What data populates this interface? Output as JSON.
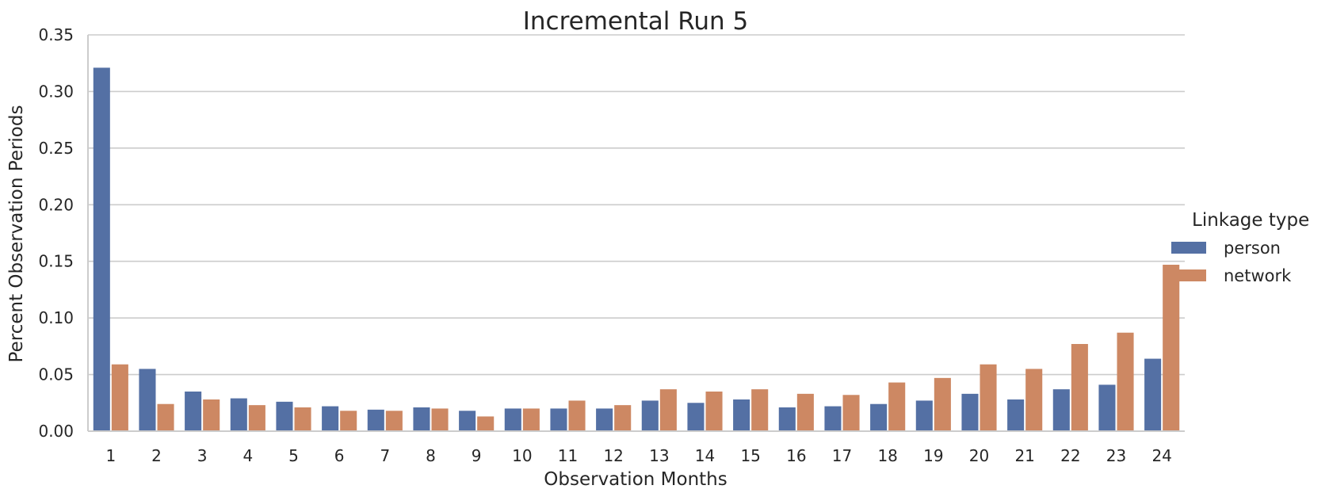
{
  "chart_data": {
    "type": "bar",
    "title": "Incremental Run 5",
    "xlabel": "Observation Months",
    "ylabel": "Percent Observation Periods",
    "ylim": [
      0,
      0.35
    ],
    "yticks": [
      "0.00",
      "0.05",
      "0.10",
      "0.15",
      "0.20",
      "0.25",
      "0.30",
      "0.35"
    ],
    "categories": [
      "1",
      "2",
      "3",
      "4",
      "5",
      "6",
      "7",
      "8",
      "9",
      "10",
      "11",
      "12",
      "13",
      "14",
      "15",
      "16",
      "17",
      "18",
      "19",
      "20",
      "21",
      "22",
      "23",
      "24"
    ],
    "grid": true,
    "legend": {
      "title": "Linkage type",
      "placement": "right"
    },
    "series": [
      {
        "name": "person",
        "color": "#5470a4",
        "values": [
          0.321,
          0.055,
          0.035,
          0.029,
          0.026,
          0.022,
          0.019,
          0.021,
          0.018,
          0.02,
          0.02,
          0.02,
          0.027,
          0.025,
          0.028,
          0.021,
          0.022,
          0.024,
          0.027,
          0.033,
          0.028,
          0.037,
          0.041,
          0.064
        ]
      },
      {
        "name": "network",
        "color": "#cd8863",
        "values": [
          0.059,
          0.024,
          0.028,
          0.023,
          0.021,
          0.018,
          0.018,
          0.02,
          0.013,
          0.02,
          0.027,
          0.023,
          0.037,
          0.035,
          0.037,
          0.033,
          0.032,
          0.043,
          0.047,
          0.059,
          0.055,
          0.077,
          0.087,
          0.147
        ]
      }
    ]
  }
}
